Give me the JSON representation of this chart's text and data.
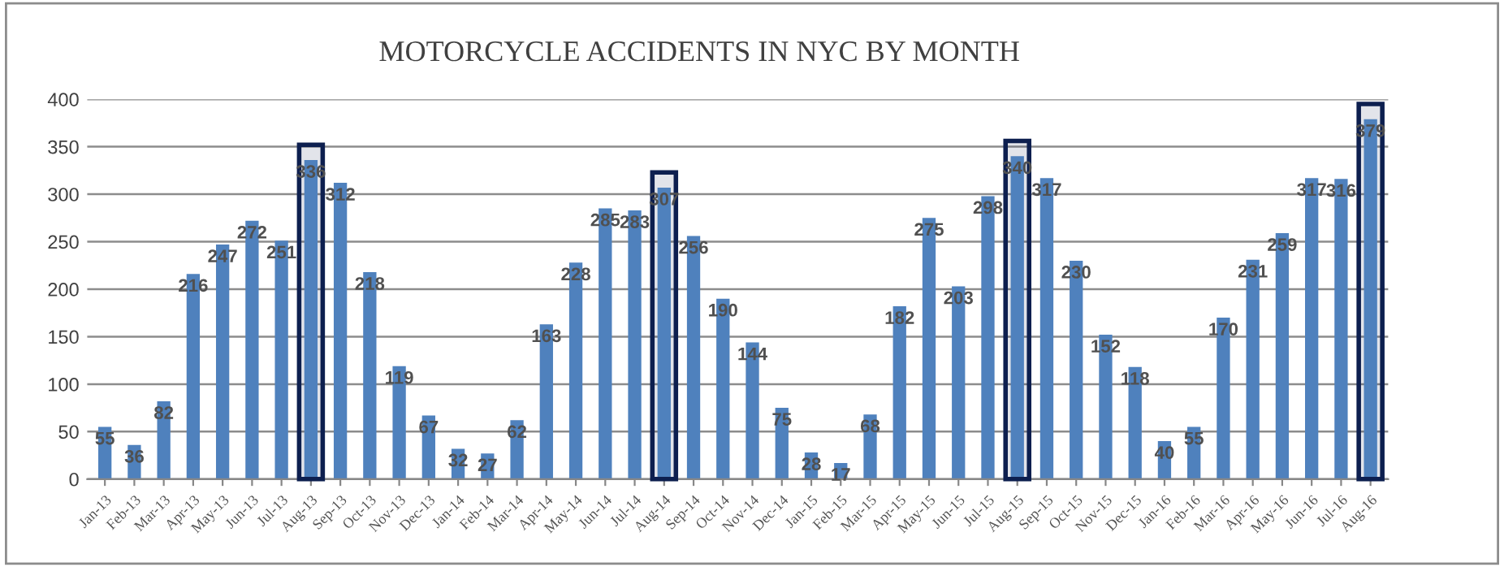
{
  "chart_data": {
    "type": "bar",
    "title": "MOTORCYCLE ACCIDENTS IN NYC BY MONTH",
    "categories": [
      "Jan-13",
      "Feb-13",
      "Mar-13",
      "Apr-13",
      "May-13",
      "Jun-13",
      "Jul-13",
      "Aug-13",
      "Sep-13",
      "Oct-13",
      "Nov-13",
      "Dec-13",
      "Jan-14",
      "Feb-14",
      "Mar-14",
      "Apr-14",
      "May-14",
      "Jun-14",
      "Jul-14",
      "Aug-14",
      "Sep-14",
      "Oct-14",
      "Nov-14",
      "Dec-14",
      "Jan-15",
      "Feb-15",
      "Mar-15",
      "Apr-15",
      "May-15",
      "Jun-15",
      "Jul-15",
      "Aug-15",
      "Sep-15",
      "Oct-15",
      "Nov-15",
      "Dec-15",
      "Jan-16",
      "Feb-16",
      "Mar-16",
      "Apr-16",
      "May-16",
      "Jun-16",
      "Jul-16",
      "Aug-16"
    ],
    "values": [
      55,
      36,
      82,
      216,
      247,
      272,
      251,
      336,
      312,
      218,
      119,
      67,
      32,
      27,
      62,
      163,
      228,
      285,
      283,
      307,
      256,
      190,
      144,
      75,
      28,
      17,
      68,
      182,
      275,
      203,
      298,
      340,
      317,
      230,
      152,
      118,
      40,
      55,
      170,
      231,
      259,
      317,
      316,
      379
    ],
    "color": "#4f81bd",
    "ylim": [
      0,
      400
    ],
    "yticks": [
      0,
      50,
      100,
      150,
      200,
      250,
      300,
      350,
      400
    ],
    "grid": "y",
    "data_labels": true,
    "bands": [
      {
        "axis": "x",
        "from": "Aug-13",
        "to": "Aug-13",
        "color": "#0d1f4f"
      },
      {
        "axis": "x",
        "from": "Aug-14",
        "to": "Aug-14",
        "color": "#0d1f4f"
      },
      {
        "axis": "x",
        "from": "Aug-15",
        "to": "Aug-15",
        "color": "#0d1f4f"
      },
      {
        "axis": "x",
        "from": "Aug-16",
        "to": "Aug-16",
        "color": "#0d1f4f"
      }
    ]
  }
}
